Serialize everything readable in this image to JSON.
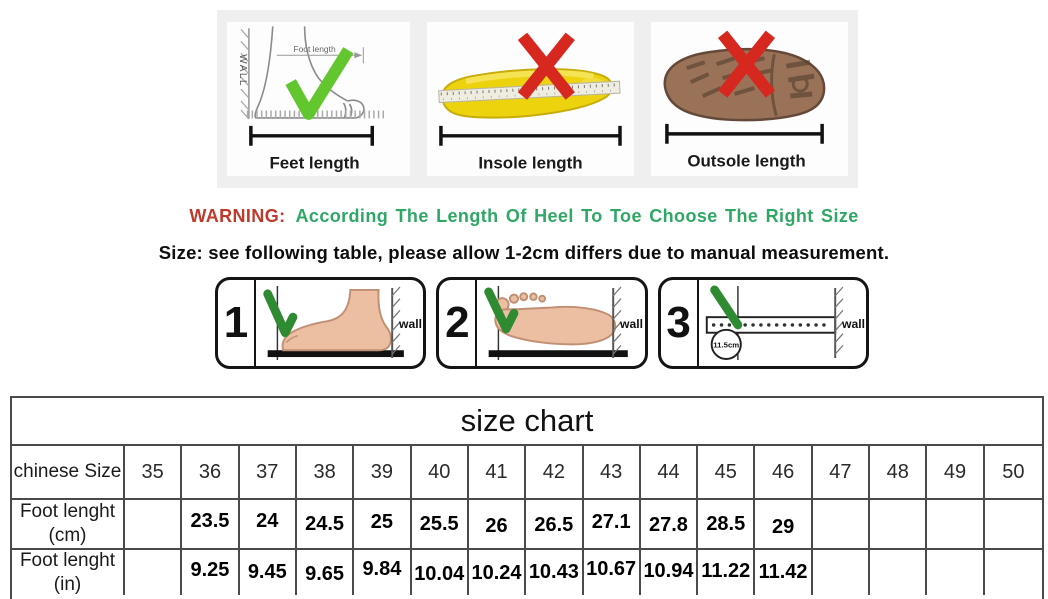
{
  "guide": {
    "panels": [
      {
        "caption": "Feet length",
        "mark": "check",
        "wall_label": "WALL",
        "arrow_label": "Foot length"
      },
      {
        "caption": "Insole length",
        "mark": "cross"
      },
      {
        "caption": "Outsole length",
        "mark": "cross"
      }
    ]
  },
  "warning": {
    "label": "WARNING:",
    "message": "According The Length Of Heel To Toe Choose The Right Size"
  },
  "note": "Size: see following table, please allow 1-2cm differs due to manual measurement.",
  "steps": [
    {
      "number": "1",
      "wall_label": "wall"
    },
    {
      "number": "2",
      "wall_label": "wall"
    },
    {
      "number": "3",
      "wall_label": "wall",
      "ruler_label": "11.5cm"
    }
  ],
  "table": {
    "title": "size chart",
    "row_labels": {
      "size": {
        "line1": "chinese Size"
      },
      "cm": {
        "line1": "Foot lenght",
        "line2": "(cm)"
      },
      "in": {
        "line1": "Foot lenght",
        "line2": "(in)"
      }
    },
    "sizes": [
      "35",
      "36",
      "37",
      "38",
      "39",
      "40",
      "41",
      "42",
      "43",
      "44",
      "45",
      "46",
      "47",
      "48",
      "49",
      "50"
    ],
    "cm_values": [
      "",
      "23.5",
      "24",
      "24.5",
      "25",
      "25.5",
      "26",
      "26.5",
      "27.1",
      "27.8",
      "28.5",
      "29",
      "",
      "",
      "",
      ""
    ],
    "in_values": [
      "",
      "9.25",
      "9.45",
      "9.65",
      "9.84",
      "10.04",
      "10.24",
      "10.43",
      "10.67",
      "10.94",
      "11.22",
      "11.42",
      "",
      "",
      "",
      ""
    ]
  },
  "colors": {
    "warning_red": "#c0392b",
    "warning_green": "#2fa866",
    "check_green": "#62c72e",
    "step_check_green": "#2e8b32",
    "cross_red": "#d6281e",
    "insole_yellow": "#edd20e",
    "outsole_brown": "#9a7257",
    "table_border": "#4a4a4a"
  }
}
